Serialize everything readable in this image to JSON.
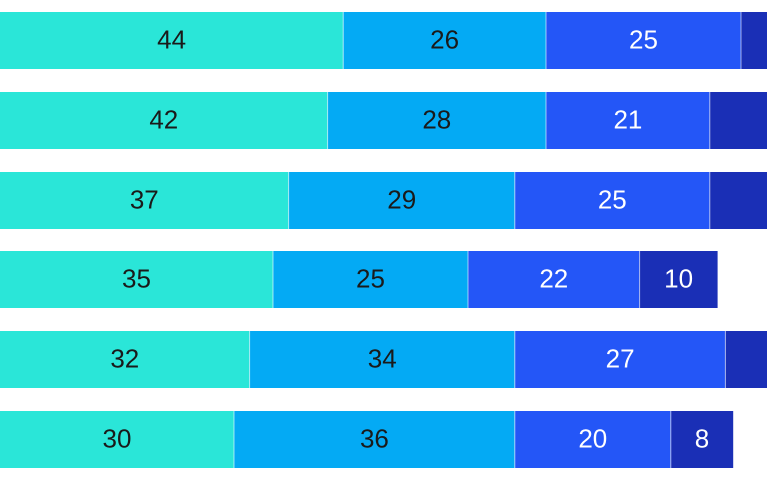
{
  "chart_data": {
    "type": "bar",
    "orientation": "horizontal",
    "stacked": true,
    "colors": [
      "#2ae6d8",
      "#04aaf4",
      "#2456f7",
      "#1a2fb6"
    ],
    "label_colors": [
      "#1a1a1a",
      "#1a1a1a",
      "#ffffff",
      "#ffffff"
    ],
    "rows": [
      {
        "values": [
          44,
          26,
          25,
          5
        ],
        "labels": [
          "44",
          "26",
          "25",
          ""
        ]
      },
      {
        "values": [
          42,
          28,
          21,
          9
        ],
        "labels": [
          "42",
          "28",
          "21",
          ""
        ]
      },
      {
        "values": [
          37,
          29,
          25,
          9
        ],
        "labels": [
          "37",
          "29",
          "25",
          ""
        ]
      },
      {
        "values": [
          35,
          25,
          22,
          10
        ],
        "labels": [
          "35",
          "25",
          "22",
          "10"
        ]
      },
      {
        "values": [
          32,
          34,
          27,
          7
        ],
        "labels": [
          "32",
          "34",
          "27",
          ""
        ]
      },
      {
        "values": [
          30,
          36,
          20,
          8
        ],
        "labels": [
          "30",
          "36",
          "20",
          "8"
        ]
      }
    ],
    "scale_per_unit": 7.8
  }
}
